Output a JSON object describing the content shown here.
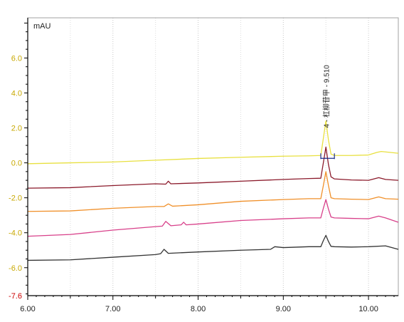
{
  "chart_data": {
    "type": "line",
    "title": "",
    "xlabel": "",
    "ylabel": "mAU",
    "xlim": [
      6.0,
      10.35
    ],
    "ylim": [
      -7.6,
      8.3
    ],
    "x_ticks": [
      {
        "value": 6.0,
        "label": "6.00"
      },
      {
        "value": 7.0,
        "label": "7.00"
      },
      {
        "value": 8.0,
        "label": "8.00"
      },
      {
        "value": 9.0,
        "label": "9.00"
      },
      {
        "value": 10.0,
        "label": "10.00"
      }
    ],
    "y_ticks": [
      {
        "value": 6.0,
        "label": "6.0"
      },
      {
        "value": 4.0,
        "label": "4.0"
      },
      {
        "value": 2.0,
        "label": "2.0"
      },
      {
        "value": 0.0,
        "label": "0.0"
      },
      {
        "value": -2.0,
        "label": "-2.0"
      },
      {
        "value": -4.0,
        "label": "-4.0"
      },
      {
        "value": -6.0,
        "label": "-6.0"
      },
      {
        "value": -7.6,
        "label": "-7.6"
      }
    ],
    "vertical_grid": true,
    "horizontal_grid": false,
    "peak_annotation": {
      "rt": 9.51,
      "label": "4 - 杠柳苷甲 - 9.510"
    },
    "series": [
      {
        "color": "#e8e040",
        "x": [
          6.0,
          6.5,
          7.0,
          7.5,
          8.0,
          8.5,
          9.0,
          9.3,
          9.44,
          9.47,
          9.5,
          9.53,
          9.56,
          9.6,
          9.8,
          10.0,
          10.1,
          10.15,
          10.35
        ],
        "y": [
          -0.05,
          0.0,
          0.05,
          0.15,
          0.25,
          0.32,
          0.38,
          0.4,
          0.42,
          1.4,
          2.4,
          1.3,
          0.5,
          0.42,
          0.42,
          0.45,
          0.6,
          0.65,
          0.55
        ]
      },
      {
        "color": "#8b1a2b",
        "x": [
          6.0,
          6.5,
          7.0,
          7.5,
          7.62,
          7.65,
          7.68,
          8.0,
          8.5,
          9.0,
          9.3,
          9.44,
          9.47,
          9.5,
          9.53,
          9.56,
          9.6,
          9.8,
          10.0,
          10.12,
          10.2,
          10.35
        ],
        "y": [
          -1.45,
          -1.42,
          -1.3,
          -1.2,
          -1.22,
          -1.05,
          -1.2,
          -1.15,
          -1.05,
          -0.95,
          -0.9,
          -0.88,
          0.0,
          0.9,
          -0.1,
          -0.8,
          -0.92,
          -0.98,
          -1.0,
          -0.85,
          -0.95,
          -1.0
        ]
      },
      {
        "color": "#f0902a",
        "x": [
          6.0,
          6.5,
          7.0,
          7.5,
          7.6,
          7.65,
          7.7,
          8.0,
          8.5,
          9.0,
          9.3,
          9.44,
          9.47,
          9.5,
          9.53,
          9.56,
          9.6,
          9.8,
          10.0,
          10.12,
          10.2,
          10.35
        ],
        "y": [
          -2.78,
          -2.75,
          -2.6,
          -2.5,
          -2.5,
          -2.35,
          -2.48,
          -2.4,
          -2.2,
          -2.1,
          -2.05,
          -2.05,
          -1.3,
          -0.5,
          -1.3,
          -2.0,
          -2.05,
          -2.08,
          -2.1,
          -1.95,
          -2.05,
          -2.08
        ]
      },
      {
        "color": "#d8408a",
        "x": [
          6.0,
          6.5,
          7.0,
          7.5,
          7.58,
          7.62,
          7.68,
          7.8,
          7.83,
          7.86,
          8.0,
          8.5,
          9.0,
          9.3,
          9.44,
          9.47,
          9.5,
          9.53,
          9.56,
          9.6,
          9.8,
          10.0,
          10.12,
          10.2,
          10.35
        ],
        "y": [
          -4.2,
          -4.1,
          -3.85,
          -3.65,
          -3.62,
          -3.35,
          -3.6,
          -3.55,
          -3.4,
          -3.55,
          -3.5,
          -3.3,
          -3.2,
          -3.15,
          -3.15,
          -2.6,
          -2.1,
          -2.65,
          -3.1,
          -3.15,
          -3.18,
          -3.2,
          -3.05,
          -3.15,
          -3.4
        ]
      },
      {
        "color": "#333333",
        "x": [
          6.0,
          6.5,
          7.0,
          7.5,
          7.56,
          7.6,
          7.65,
          8.0,
          8.5,
          8.85,
          8.9,
          9.0,
          9.3,
          9.44,
          9.47,
          9.5,
          9.53,
          9.56,
          9.6,
          9.8,
          10.0,
          10.2,
          10.35
        ],
        "y": [
          -5.58,
          -5.55,
          -5.4,
          -5.25,
          -5.2,
          -4.95,
          -5.18,
          -5.1,
          -5.0,
          -4.95,
          -4.8,
          -4.85,
          -4.8,
          -4.8,
          -4.45,
          -4.15,
          -4.5,
          -4.78,
          -4.8,
          -4.82,
          -4.8,
          -4.75,
          -4.95
        ]
      }
    ]
  }
}
